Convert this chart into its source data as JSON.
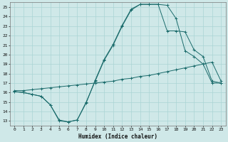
{
  "xlabel": "Humidex (Indice chaleur)",
  "bg_color": "#cfe8e8",
  "line_color": "#1a6b6b",
  "grid_color": "#aad4d4",
  "xlim": [
    -0.5,
    23.5
  ],
  "ylim": [
    12.5,
    25.5
  ],
  "xticks": [
    0,
    1,
    2,
    3,
    4,
    5,
    6,
    7,
    8,
    9,
    10,
    11,
    12,
    13,
    14,
    15,
    16,
    17,
    18,
    19,
    20,
    21,
    22,
    23
  ],
  "yticks": [
    13,
    14,
    15,
    16,
    17,
    18,
    19,
    20,
    21,
    22,
    23,
    24,
    25
  ],
  "line1_x": [
    0,
    1,
    2,
    3,
    4,
    5,
    6,
    7,
    8,
    9,
    10,
    11,
    12,
    13,
    14,
    15,
    16,
    17,
    18,
    19,
    20,
    21,
    22,
    23
  ],
  "line1_y": [
    16.2,
    16.2,
    16.3,
    16.4,
    16.5,
    16.6,
    16.7,
    16.8,
    16.9,
    17.0,
    17.1,
    17.2,
    17.4,
    17.5,
    17.7,
    17.8,
    18.0,
    18.2,
    18.4,
    18.6,
    18.8,
    19.0,
    19.2,
    17.2
  ],
  "line2_x": [
    0,
    1,
    2,
    3,
    4,
    5,
    6,
    7,
    8,
    9,
    10,
    11,
    12,
    13,
    14,
    15,
    16,
    17,
    18,
    19,
    20,
    21,
    22,
    23
  ],
  "line2_y": [
    16.1,
    16.0,
    15.8,
    15.6,
    14.7,
    13.0,
    12.9,
    13.1,
    15.0,
    17.2,
    19.4,
    21.0,
    23.0,
    24.7,
    25.3,
    25.3,
    25.3,
    25.2,
    23.8,
    20.4,
    19.8,
    19.0,
    17.0,
    17.0
  ],
  "line3_x": [
    0,
    1,
    2,
    3,
    4,
    5,
    6,
    7,
    8,
    9,
    10,
    11,
    12,
    13,
    14,
    15,
    16,
    17,
    18,
    19,
    20,
    21,
    22,
    23
  ],
  "line3_y": [
    16.1,
    16.0,
    15.8,
    15.6,
    14.7,
    13.1,
    12.9,
    13.1,
    14.9,
    17.3,
    19.5,
    21.1,
    23.1,
    24.8,
    25.3,
    25.3,
    25.3,
    22.5,
    22.5,
    22.4,
    20.5,
    19.8,
    17.2,
    17.0
  ]
}
